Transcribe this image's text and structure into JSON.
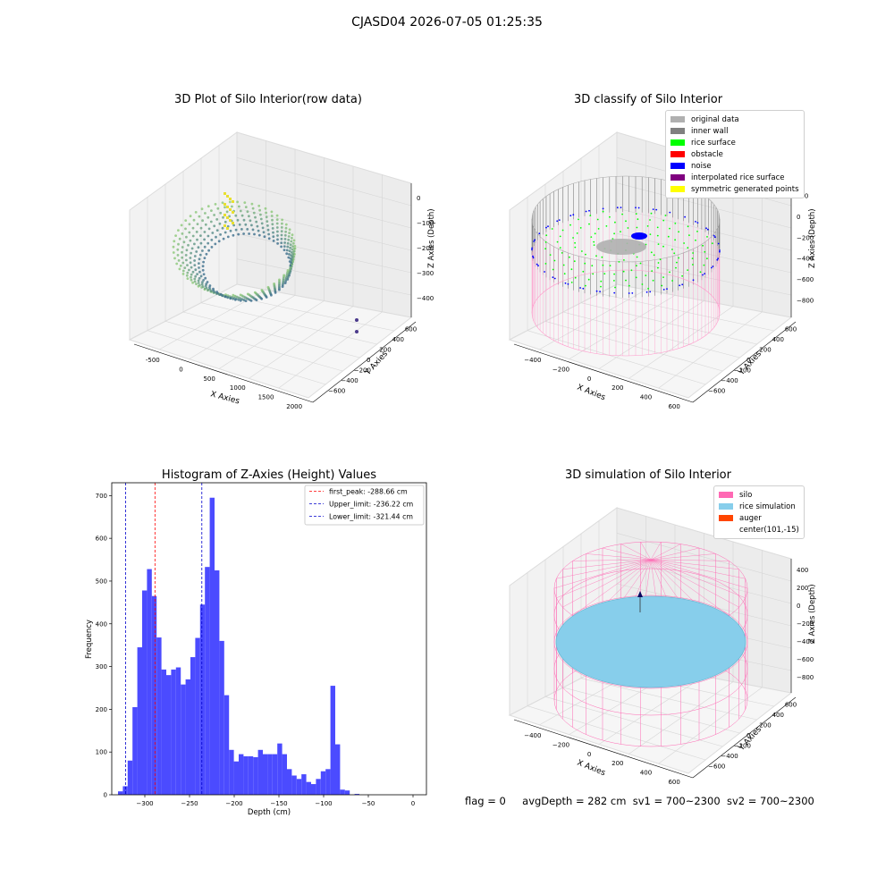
{
  "suptitle": "CJASD04 2026-07-05 01:25:35",
  "footer": {
    "flag": "flag = 0",
    "avg_depth": "avgDepth = 282 cm",
    "sv1": "sv1 = 700~2300",
    "sv2": "sv2 = 700~2300"
  },
  "panels": {
    "raw": {
      "title": "3D Plot of Silo Interior(row data)",
      "xlabel": "X Axies",
      "ylabel": "Y Axies",
      "zlabel": "Z Axies (Depth)",
      "xticks": [
        "-500",
        "0",
        "500",
        "1000",
        "1500",
        "2000"
      ],
      "yticks": [
        "600",
        "400",
        "200",
        "0",
        "−200",
        "−400",
        "−600"
      ],
      "zticks": [
        "0",
        "−100",
        "−200",
        "−300",
        "−400"
      ]
    },
    "classify": {
      "title": "3D classify of Silo Interior",
      "xlabel": "X Axies",
      "ylabel": "Y Axies",
      "zlabel": "Z Axies (Depth)",
      "xticks": [
        "−400",
        "−200",
        "0",
        "200",
        "400",
        "600"
      ],
      "yticks": [
        "600",
        "400",
        "200",
        "0",
        "−200",
        "−400",
        "−600"
      ],
      "zticks": [
        "200",
        "0",
        "−200",
        "−400",
        "−600",
        "−800"
      ],
      "legend": [
        {
          "label": "original data",
          "color": "#b0b0b0"
        },
        {
          "label": "inner wall",
          "color": "#808080"
        },
        {
          "label": "rice surface",
          "color": "#00ff00"
        },
        {
          "label": "obstacle",
          "color": "#ff0000"
        },
        {
          "label": "noise",
          "color": "#0000ff"
        },
        {
          "label": "interpolated rice surface",
          "color": "#800080"
        },
        {
          "label": "symmetric generated points",
          "color": "#ffff00"
        }
      ]
    },
    "simulation": {
      "title": "3D simulation of Silo Interior",
      "xlabel": "X Axies",
      "ylabel": "Y Axies",
      "zlabel": "Z Axies (Depth)",
      "xticks": [
        "−400",
        "−200",
        "0",
        "200",
        "400",
        "600"
      ],
      "yticks": [
        "600",
        "400",
        "200",
        "0",
        "−200",
        "−400",
        "−600"
      ],
      "zticks": [
        "400",
        "200",
        "0",
        "−200",
        "−400",
        "−600",
        "−800"
      ],
      "legend": [
        {
          "label": "silo",
          "color": "#ff69b4"
        },
        {
          "label": "rice simulation",
          "color": "#87ceeb"
        },
        {
          "label": "auger",
          "color": "#ff4500"
        },
        {
          "label": "center(101,-15)",
          "color": ""
        }
      ]
    }
  },
  "chart_data": [
    {
      "type": "bar",
      "title": "Histogram of Z-Axies (Height) Values",
      "xlabel": "Depth (cm)",
      "ylabel": "Frequency",
      "color": "#4b4bff",
      "xlim": [
        -337,
        15
      ],
      "ylim": [
        0,
        730
      ],
      "xticks": [
        -300,
        -250,
        -200,
        -150,
        -100,
        -50,
        0
      ],
      "yticks": [
        0,
        100,
        200,
        300,
        400,
        500,
        600,
        700
      ],
      "bin_start": -330,
      "bin_width": 5.4,
      "values": [
        8,
        20,
        80,
        205,
        345,
        478,
        528,
        465,
        368,
        293,
        280,
        293,
        298,
        258,
        270,
        322,
        367,
        445,
        533,
        695,
        525,
        360,
        233,
        105,
        78,
        95,
        90,
        90,
        88,
        105,
        95,
        95,
        95,
        120,
        95,
        60,
        45,
        37,
        48,
        30,
        25,
        37,
        55,
        60,
        255,
        118,
        12,
        10,
        0,
        2
      ],
      "vlines": [
        {
          "label": "first_peak: -288.66 cm",
          "x": -288.66,
          "color": "#ff0000"
        },
        {
          "label": "Upper_limit: -236.22 cm",
          "x": -236.22,
          "color": "#0000cc"
        },
        {
          "label": "Lower_limit: -321.44 cm",
          "x": -321.44,
          "color": "#0000cc"
        }
      ]
    }
  ]
}
